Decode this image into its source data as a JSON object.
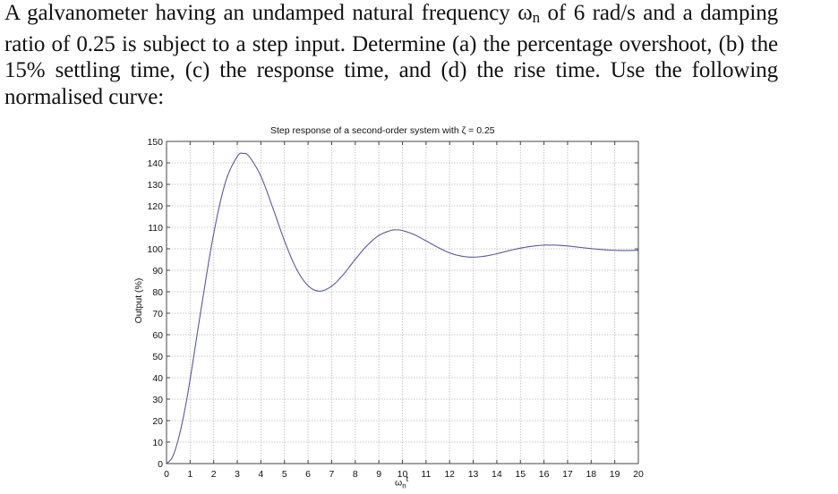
{
  "problem": {
    "text_before_omega": "A galvanometer having an undamped natural frequency ",
    "omega_symbol": "ω",
    "omega_subscript": "n",
    "text_after_omega": " of 6 rad/s and a damping ratio of 0.25 is subject to a step input. Determine (a) the percentage overshoot, (b) the 15% settling time, (c) the response time, and (d) the rise time. Use the following normalised curve:"
  },
  "chart_data": {
    "type": "line",
    "title": "Step response of a second-order system with ζ = 0.25",
    "xlabel": "ωnt",
    "xlabel_parts": {
      "symbol": "ω",
      "sub": "n",
      "sup": "t"
    },
    "ylabel": "Output (%)",
    "xlim": [
      0,
      20
    ],
    "ylim": [
      0,
      150
    ],
    "xticks": [
      0,
      1,
      2,
      3,
      4,
      5,
      6,
      7,
      8,
      9,
      10,
      11,
      12,
      13,
      14,
      15,
      16,
      17,
      18,
      19,
      20
    ],
    "yticks": [
      0,
      10,
      20,
      30,
      40,
      50,
      60,
      70,
      80,
      90,
      100,
      110,
      120,
      130,
      140,
      150
    ],
    "grid": true,
    "line_color": "#5a5a9a",
    "series": [
      {
        "name": "Step response (ζ = 0.25)",
        "x": [
          0,
          0.25,
          0.5,
          0.75,
          1,
          1.5,
          2,
          2.5,
          3,
          3.245,
          3.5,
          4,
          4.5,
          5,
          5.5,
          6,
          6.49,
          7,
          7.5,
          8,
          8.5,
          9,
          9.5,
          9.73,
          10,
          10.5,
          11,
          11.5,
          12,
          12.5,
          12.98,
          13.5,
          14,
          14.5,
          15,
          15.5,
          16,
          16.22,
          16.5,
          17,
          17.5,
          18,
          18.5,
          19,
          19.5,
          20
        ],
        "values": [
          0,
          3.0,
          11.3,
          23.6,
          39.2,
          74.3,
          107.1,
          131.1,
          143.0,
          144.4,
          143.0,
          133.8,
          119.2,
          103.7,
          90.8,
          82.8,
          80.3,
          82.6,
          88.1,
          95.1,
          101.5,
          106.2,
          108.5,
          108.8,
          108.5,
          106.6,
          103.7,
          100.7,
          98.1,
          96.6,
          96.1,
          96.6,
          97.7,
          99.1,
          100.3,
          101.2,
          101.7,
          101.7,
          101.7,
          101.3,
          100.7,
          100.1,
          99.6,
          99.3,
          99.2,
          99.3
        ]
      }
    ]
  }
}
